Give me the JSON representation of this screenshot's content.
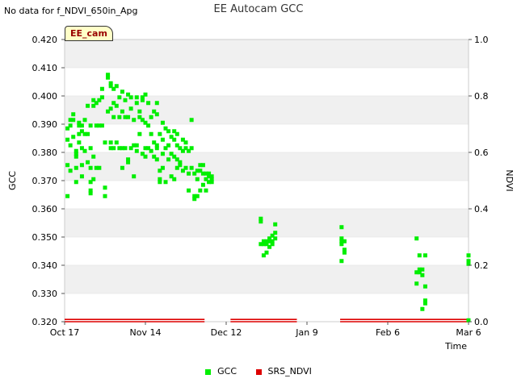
{
  "header": {
    "no_data_note": "No data for f_NDVI_650in_Apg",
    "title": "EE Autocam GCC",
    "site_badge": "EE_cam"
  },
  "chart_data": {
    "type": "scatter",
    "title": "EE Autocam GCC",
    "xlabel": "Time",
    "ylabel": "GCC",
    "y2label": "NDVI",
    "x_domain_days": [
      0,
      140
    ],
    "x_ticks": [
      {
        "day": 0,
        "label": "Oct 17"
      },
      {
        "day": 28,
        "label": "Nov 14"
      },
      {
        "day": 56,
        "label": "Dec 12"
      },
      {
        "day": 84,
        "label": "Jan 9"
      },
      {
        "day": 112,
        "label": "Feb 6"
      },
      {
        "day": 140,
        "label": "Mar 6"
      }
    ],
    "ylim": [
      0.32,
      0.42
    ],
    "y_ticks": [
      "0.320",
      "0.330",
      "0.340",
      "0.350",
      "0.360",
      "0.370",
      "0.380",
      "0.390",
      "0.400",
      "0.410",
      "0.420"
    ],
    "y2lim": [
      0.0,
      1.0
    ],
    "y2_ticks": [
      "0.0",
      "0.2",
      "0.4",
      "0.6",
      "0.8",
      "1.0"
    ],
    "legend": [
      "GCC",
      "SRS_NDVI"
    ],
    "colors": {
      "gcc": "#00ee00",
      "ndvi": "#dd0000",
      "band": "#f0f0f0",
      "grid": "#dddddd"
    },
    "series": [
      {
        "name": "GCC",
        "points": [
          [
            1,
            0.3645
          ],
          [
            1,
            0.3755
          ],
          [
            1,
            0.3845
          ],
          [
            1,
            0.3885
          ],
          [
            2,
            0.3735
          ],
          [
            2,
            0.3825
          ],
          [
            2,
            0.3915
          ],
          [
            2,
            0.3895
          ],
          [
            3,
            0.3935
          ],
          [
            3,
            0.3915
          ],
          [
            3,
            0.3855
          ],
          [
            4,
            0.3695
          ],
          [
            4,
            0.3745
          ],
          [
            4,
            0.3785
          ],
          [
            4,
            0.3795
          ],
          [
            4,
            0.3805
          ],
          [
            5,
            0.3865
          ],
          [
            5,
            0.3895
          ],
          [
            5,
            0.3905
          ],
          [
            5,
            0.3835
          ],
          [
            6,
            0.3715
          ],
          [
            6,
            0.3755
          ],
          [
            6,
            0.3815
          ],
          [
            6,
            0.3875
          ],
          [
            6,
            0.3895
          ],
          [
            7,
            0.3865
          ],
          [
            7,
            0.3915
          ],
          [
            7,
            0.3805
          ],
          [
            8,
            0.3965
          ],
          [
            8,
            0.3765
          ],
          [
            8,
            0.3865
          ],
          [
            9,
            0.3695
          ],
          [
            9,
            0.3655
          ],
          [
            9,
            0.3665
          ],
          [
            9,
            0.3745
          ],
          [
            9,
            0.3815
          ],
          [
            9,
            0.3895
          ],
          [
            10,
            0.3965
          ],
          [
            10,
            0.3985
          ],
          [
            10,
            0.3705
          ],
          [
            10,
            0.3785
          ],
          [
            11,
            0.3745
          ],
          [
            11,
            0.3895
          ],
          [
            11,
            0.3975
          ],
          [
            12,
            0.3985
          ],
          [
            12,
            0.3895
          ],
          [
            12,
            0.3745
          ],
          [
            13,
            0.3995
          ],
          [
            13,
            0.4025
          ],
          [
            13,
            0.3895
          ],
          [
            14,
            0.3645
          ],
          [
            14,
            0.3675
          ],
          [
            14,
            0.3835
          ],
          [
            15,
            0.4065
          ],
          [
            15,
            0.4075
          ],
          [
            15,
            0.3945
          ],
          [
            16,
            0.4035
          ],
          [
            16,
            0.4045
          ],
          [
            16,
            0.3955
          ],
          [
            16,
            0.3835
          ],
          [
            16,
            0.3815
          ],
          [
            17,
            0.4025
          ],
          [
            17,
            0.3975
          ],
          [
            17,
            0.3925
          ],
          [
            17,
            0.3815
          ],
          [
            18,
            0.4035
          ],
          [
            18,
            0.3965
          ],
          [
            18,
            0.3835
          ],
          [
            19,
            0.3995
          ],
          [
            19,
            0.3925
          ],
          [
            19,
            0.3815
          ],
          [
            20,
            0.4015
          ],
          [
            20,
            0.3945
          ],
          [
            20,
            0.3815
          ],
          [
            20,
            0.3745
          ],
          [
            21,
            0.3985
          ],
          [
            21,
            0.3925
          ],
          [
            21,
            0.3815
          ],
          [
            22,
            0.4005
          ],
          [
            22,
            0.3925
          ],
          [
            22,
            0.3775
          ],
          [
            22,
            0.3765
          ],
          [
            23,
            0.3995
          ],
          [
            23,
            0.3955
          ],
          [
            23,
            0.3815
          ],
          [
            24,
            0.3915
          ],
          [
            24,
            0.3715
          ],
          [
            24,
            0.3825
          ],
          [
            25,
            0.3995
          ],
          [
            25,
            0.3975
          ],
          [
            25,
            0.3825
          ],
          [
            25,
            0.3805
          ],
          [
            26,
            0.3945
          ],
          [
            26,
            0.3925
          ],
          [
            26,
            0.3865
          ],
          [
            27,
            0.3995
          ],
          [
            27,
            0.3985
          ],
          [
            27,
            0.3915
          ],
          [
            27,
            0.3795
          ],
          [
            28,
            0.3905
          ],
          [
            28,
            0.4005
          ],
          [
            28,
            0.3815
          ],
          [
            28,
            0.3785
          ],
          [
            29,
            0.3975
          ],
          [
            29,
            0.3895
          ],
          [
            29,
            0.3815
          ],
          [
            30,
            0.3925
          ],
          [
            30,
            0.3865
          ],
          [
            30,
            0.3805
          ],
          [
            31,
            0.3945
          ],
          [
            31,
            0.3835
          ],
          [
            31,
            0.3785
          ],
          [
            32,
            0.3975
          ],
          [
            32,
            0.3935
          ],
          [
            32,
            0.3825
          ],
          [
            32,
            0.3815
          ],
          [
            32,
            0.3775
          ],
          [
            33,
            0.3735
          ],
          [
            33,
            0.3705
          ],
          [
            33,
            0.3695
          ],
          [
            33,
            0.3865
          ],
          [
            34,
            0.3905
          ],
          [
            34,
            0.3845
          ],
          [
            34,
            0.3795
          ],
          [
            34,
            0.3745
          ],
          [
            35,
            0.3885
          ],
          [
            35,
            0.3815
          ],
          [
            35,
            0.3695
          ],
          [
            36,
            0.3875
          ],
          [
            36,
            0.3825
          ],
          [
            36,
            0.3775
          ],
          [
            37,
            0.3855
          ],
          [
            37,
            0.3795
          ],
          [
            37,
            0.3715
          ],
          [
            38,
            0.3875
          ],
          [
            38,
            0.3845
          ],
          [
            38,
            0.3785
          ],
          [
            38,
            0.3705
          ],
          [
            39,
            0.3865
          ],
          [
            39,
            0.3825
          ],
          [
            39,
            0.3775
          ],
          [
            39,
            0.3745
          ],
          [
            40,
            0.3815
          ],
          [
            40,
            0.3765
          ],
          [
            40,
            0.3755
          ],
          [
            41,
            0.3845
          ],
          [
            41,
            0.3805
          ],
          [
            41,
            0.3735
          ],
          [
            42,
            0.3835
          ],
          [
            42,
            0.3815
          ],
          [
            42,
            0.3745
          ],
          [
            43,
            0.3805
          ],
          [
            43,
            0.3725
          ],
          [
            43,
            0.3665
          ],
          [
            44,
            0.3915
          ],
          [
            44,
            0.3815
          ],
          [
            44,
            0.3745
          ],
          [
            45,
            0.3725
          ],
          [
            45,
            0.3645
          ],
          [
            45,
            0.3635
          ],
          [
            46,
            0.3735
          ],
          [
            46,
            0.3705
          ],
          [
            46,
            0.3645
          ],
          [
            47,
            0.3755
          ],
          [
            47,
            0.3735
          ],
          [
            47,
            0.3665
          ],
          [
            48,
            0.3755
          ],
          [
            48,
            0.3725
          ],
          [
            48,
            0.3685
          ],
          [
            49,
            0.3725
          ],
          [
            49,
            0.3705
          ],
          [
            49,
            0.3665
          ],
          [
            50,
            0.3725
          ],
          [
            50,
            0.3715
          ],
          [
            50,
            0.3695
          ],
          [
            51,
            0.3715
          ],
          [
            51,
            0.3705
          ],
          [
            51,
            0.3695
          ],
          [
            68,
            0.3565
          ],
          [
            68,
            0.3555
          ],
          [
            68,
            0.3475
          ],
          [
            69,
            0.3485
          ],
          [
            69,
            0.3475
          ],
          [
            69,
            0.3435
          ],
          [
            70,
            0.3485
          ],
          [
            70,
            0.3445
          ],
          [
            70,
            0.3475
          ],
          [
            71,
            0.3495
          ],
          [
            71,
            0.3485
          ],
          [
            71,
            0.3465
          ],
          [
            72,
            0.3505
          ],
          [
            72,
            0.3485
          ],
          [
            72,
            0.3475
          ],
          [
            73,
            0.3545
          ],
          [
            73,
            0.3515
          ],
          [
            73,
            0.3495
          ],
          [
            96,
            0.3535
          ],
          [
            96,
            0.3495
          ],
          [
            96,
            0.3485
          ],
          [
            96,
            0.3475
          ],
          [
            96,
            0.3415
          ],
          [
            97,
            0.3485
          ],
          [
            97,
            0.3455
          ],
          [
            97,
            0.3445
          ],
          [
            122,
            0.3495
          ],
          [
            122,
            0.3375
          ],
          [
            122,
            0.3335
          ],
          [
            123,
            0.3435
          ],
          [
            123,
            0.3375
          ],
          [
            123,
            0.3385
          ],
          [
            124,
            0.3385
          ],
          [
            124,
            0.3365
          ],
          [
            124,
            0.3245
          ],
          [
            125,
            0.3435
          ],
          [
            125,
            0.3325
          ],
          [
            125,
            0.3275
          ],
          [
            125,
            0.3265
          ],
          [
            140,
            0.3435
          ],
          [
            140,
            0.3415
          ],
          [
            140,
            0.3405
          ],
          [
            140,
            0.3205
          ]
        ]
      },
      {
        "name": "SRS_NDVI",
        "segments": [
          [
            0,
            48.5
          ],
          [
            57.5,
            80.5
          ],
          [
            95.5,
            140
          ]
        ],
        "values": [
          0.0,
          0.008
        ]
      }
    ]
  }
}
